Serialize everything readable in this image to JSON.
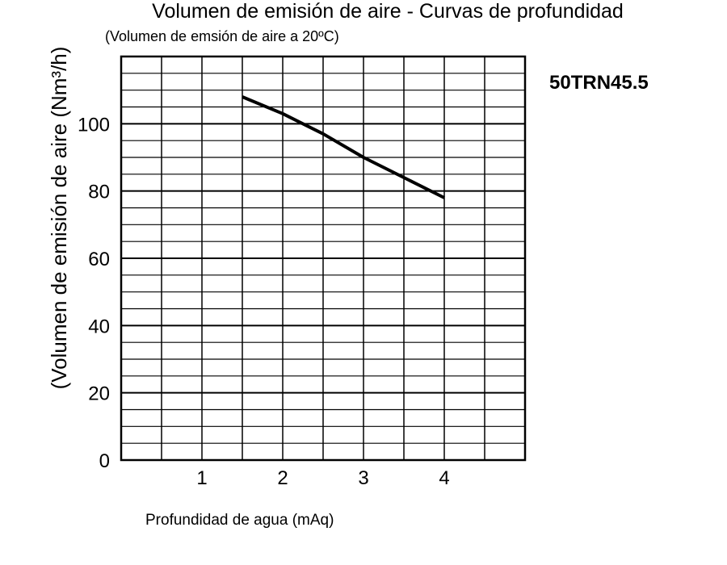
{
  "chart_data": {
    "type": "line",
    "title": "Volumen de emisión de aire - Curvas de profundidad",
    "subtitle": "(Volumen de emsión de aire a 20ºC)",
    "xlabel": "Profundidad de agua (mAq)",
    "ylabel": "(Volumen de emisión de aire (Nm³/h)",
    "model_label": "50TRN45.5",
    "xlim": [
      0,
      5
    ],
    "ylim": [
      0,
      120
    ],
    "x_ticks": [
      1,
      2,
      3,
      4
    ],
    "y_ticks": [
      0,
      20,
      40,
      60,
      80,
      100
    ],
    "grid": true,
    "series": [
      {
        "x": [
          1.5,
          2.0,
          2.5,
          3.0,
          3.5,
          4.0
        ],
        "y": [
          108,
          103,
          97,
          90,
          84,
          78
        ]
      }
    ],
    "colors": {
      "line": "#000000",
      "grid": "#000000"
    }
  }
}
